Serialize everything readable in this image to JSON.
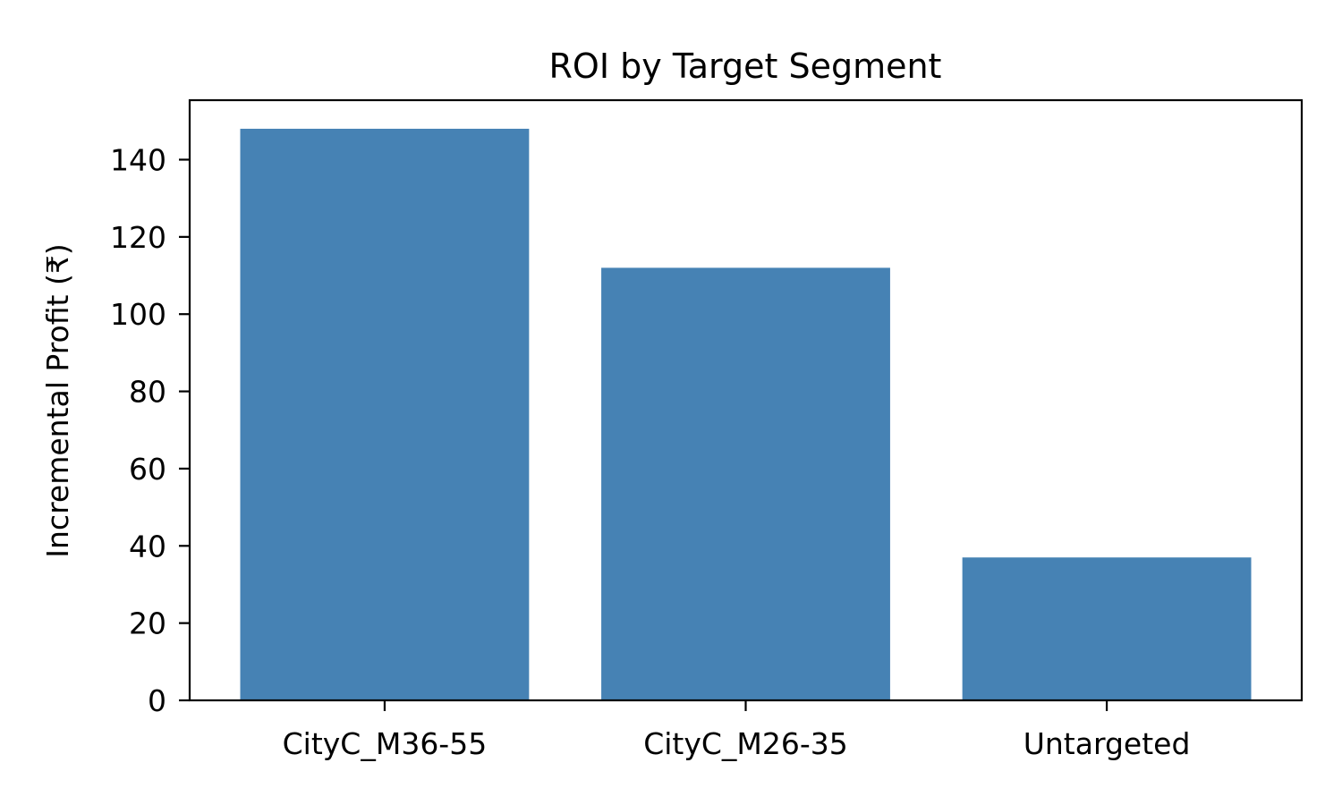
{
  "chart_data": {
    "type": "bar",
    "title": "ROI by Target Segment",
    "xlabel": "",
    "ylabel": "Incremental Profit (₹)",
    "categories": [
      "CityC_M36-55",
      "CityC_M26-35",
      "Untargeted"
    ],
    "values": [
      148,
      112,
      37
    ],
    "ylim": [
      0,
      155.4
    ],
    "yticks": [
      0,
      20,
      40,
      60,
      80,
      100,
      120,
      140
    ],
    "bar_color": "#4682b4",
    "grid": false,
    "legend": "none"
  }
}
